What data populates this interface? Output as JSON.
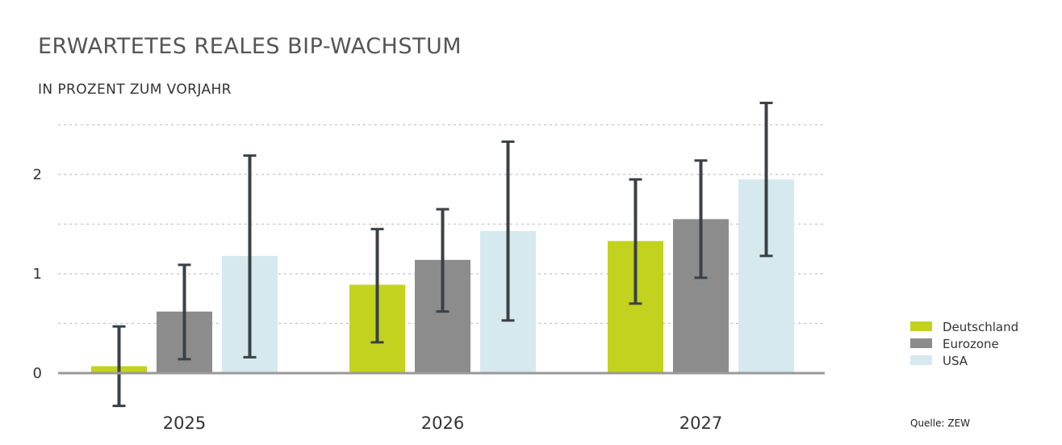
{
  "colors": {
    "Deutschland": "#c2d21e",
    "Eurozone": "#8c8c8c",
    "USA": "#d6e9ef",
    "error_bar": "#3a4147",
    "grid": "#c4c4c4",
    "axis": "#999999"
  },
  "chart_data": {
    "type": "bar",
    "title": "ERWARTETES REALES BIP-WACHSTUM",
    "subtitle": "IN PROZENT ZUM VORJAHR",
    "categories": [
      "2025",
      "2026",
      "2027"
    ],
    "series": [
      {
        "name": "Deutschland",
        "values": [
          0.07,
          0.89,
          1.33
        ],
        "err_low": [
          -0.33,
          0.31,
          0.7
        ],
        "err_high": [
          0.47,
          1.45,
          1.95
        ]
      },
      {
        "name": "Eurozone",
        "values": [
          0.62,
          1.14,
          1.55
        ],
        "err_low": [
          0.14,
          0.62,
          0.96
        ],
        "err_high": [
          1.09,
          1.65,
          2.14
        ]
      },
      {
        "name": "USA",
        "values": [
          1.18,
          1.43,
          1.95
        ],
        "err_low": [
          0.16,
          0.53,
          1.18
        ],
        "err_high": [
          2.19,
          2.33,
          2.72
        ]
      }
    ],
    "yticks": [
      "0",
      "1",
      "2"
    ],
    "ylim": [
      -0.4,
      2.8
    ],
    "grid": true,
    "legend": "bottom-right",
    "source": "Quelle: ZEW"
  }
}
